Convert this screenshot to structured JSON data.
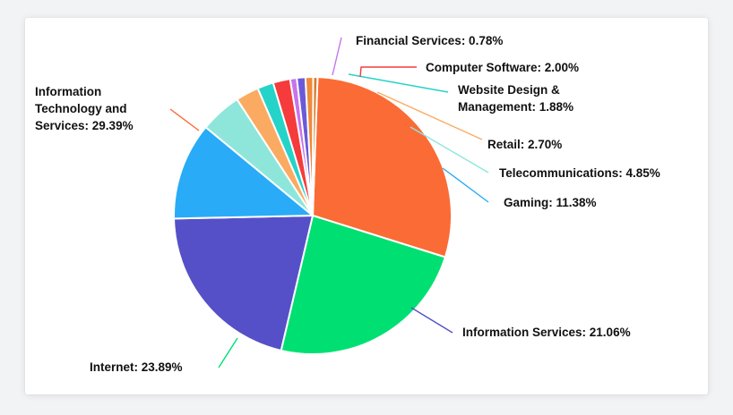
{
  "chart_data": {
    "type": "pie",
    "title": "",
    "slices": [
      {
        "label": "Information Technology and Services",
        "display": [
          "Information",
          "Technology and",
          "Services: 29.39%"
        ],
        "value": 29.39,
        "color": "#fb6b35"
      },
      {
        "label": "Internet",
        "display": [
          "Internet: 23.89%"
        ],
        "value": 23.89,
        "color": "#00e072"
      },
      {
        "label": "Information Services",
        "display": [
          "Information Services: 21.06%"
        ],
        "value": 21.06,
        "color": "#5550c8"
      },
      {
        "label": "Gaming",
        "display": [
          "Gaming: 11.38%"
        ],
        "value": 11.38,
        "color": "#29abf8"
      },
      {
        "label": "Telecommunications",
        "display": [
          "Telecommunications: 4.85%"
        ],
        "value": 4.85,
        "color": "#8ee6db"
      },
      {
        "label": "Retail",
        "display": [
          "Retail: 2.70%"
        ],
        "value": 2.7,
        "color": "#fbaa62"
      },
      {
        "label": "Website Design & Management",
        "display": [
          "Website Design &",
          "Management: 1.88%"
        ],
        "value": 1.88,
        "color": "#26d3c9"
      },
      {
        "label": "Computer Software",
        "display": [
          "Computer Software: 2.00%"
        ],
        "value": 2.0,
        "color": "#f53b3b"
      },
      {
        "label": "Financial Services",
        "display": [
          "Financial Services: 0.78%"
        ],
        "value": 0.78,
        "color": "#c774ea"
      },
      {
        "label": "(unlabeled slice)",
        "display": [],
        "value": 1.0,
        "color": "#6a5ad8"
      },
      {
        "label": "(unlabeled slice)",
        "display": [],
        "value": 0.9,
        "color": "#f08a3a"
      },
      {
        "label": "(unlabeled slice)",
        "display": [],
        "value": 0.5,
        "color": "#d97a28"
      }
    ],
    "legend": "none"
  }
}
